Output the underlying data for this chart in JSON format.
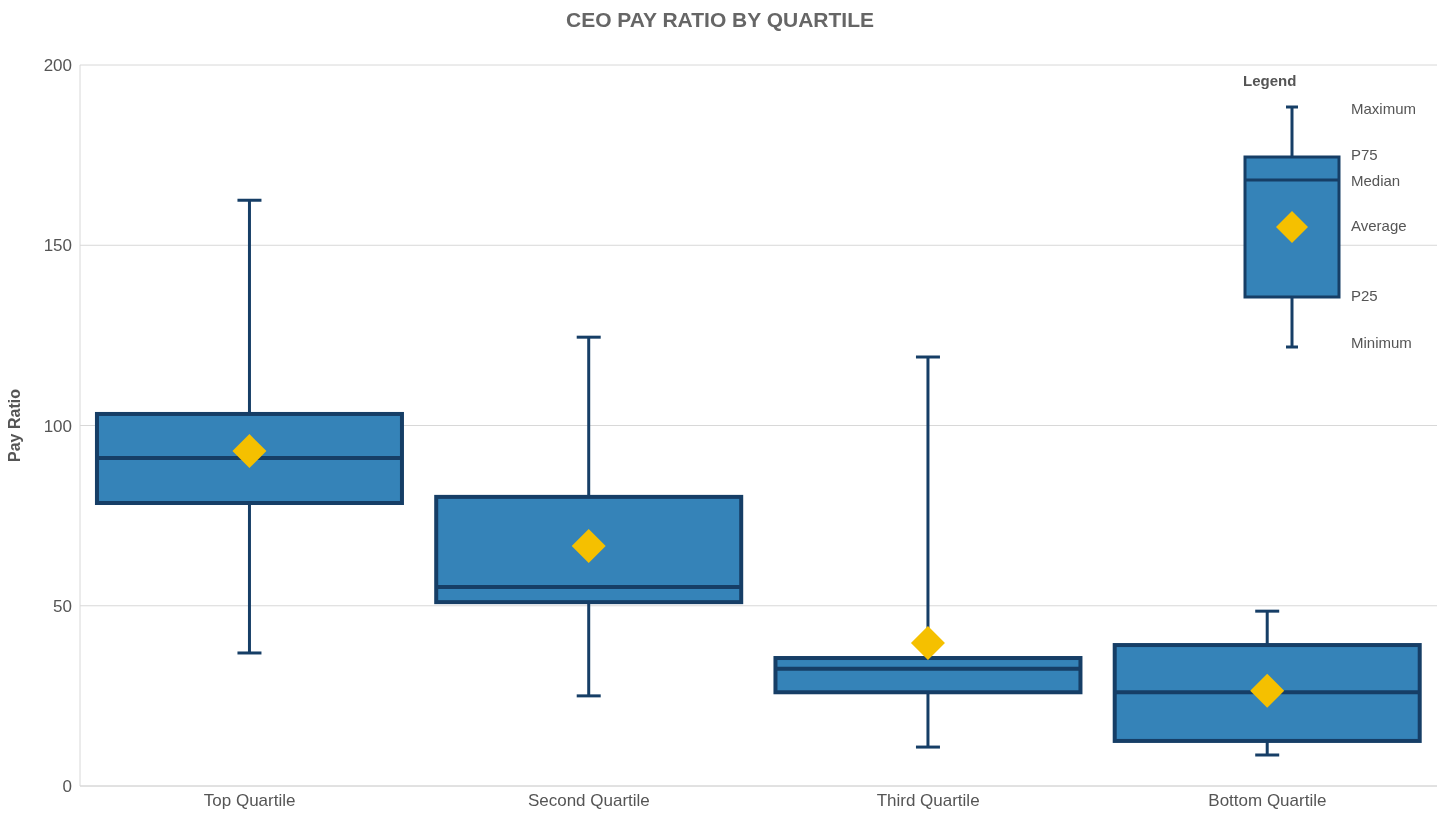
{
  "chart_data": {
    "type": "box",
    "title": "CEO PAY RATIO BY QUARTILE",
    "ylabel": "Pay Ratio",
    "categories": [
      "Top Quartile",
      "Second Quartile",
      "Third Quartile",
      "Bottom Quartile"
    ],
    "boxes": [
      {
        "low": 36.9,
        "q1": 78.5,
        "median": 91,
        "q3": 103.2,
        "high": 162.5,
        "mean": 92.9
      },
      {
        "low": 25,
        "q1": 51,
        "median": 55.2,
        "q3": 80.2,
        "high": 124.5,
        "mean": 66.6
      },
      {
        "low": 10.8,
        "q1": 26,
        "median": 32.5,
        "q3": 35.5,
        "high": 119,
        "mean": 39.7
      },
      {
        "low": 8.6,
        "q1": 12.5,
        "median": 26,
        "q3": 39.1,
        "high": 48.5,
        "mean": 26.4
      }
    ],
    "color": "#3583b8",
    "ylim": [
      0,
      200
    ],
    "yticks": [
      0,
      50,
      100,
      150,
      200
    ],
    "grid": "y",
    "legend_title": "Legend",
    "annotations": [
      "Maximum",
      "P75",
      "Median",
      "Average",
      "P25",
      "Minimum"
    ]
  }
}
